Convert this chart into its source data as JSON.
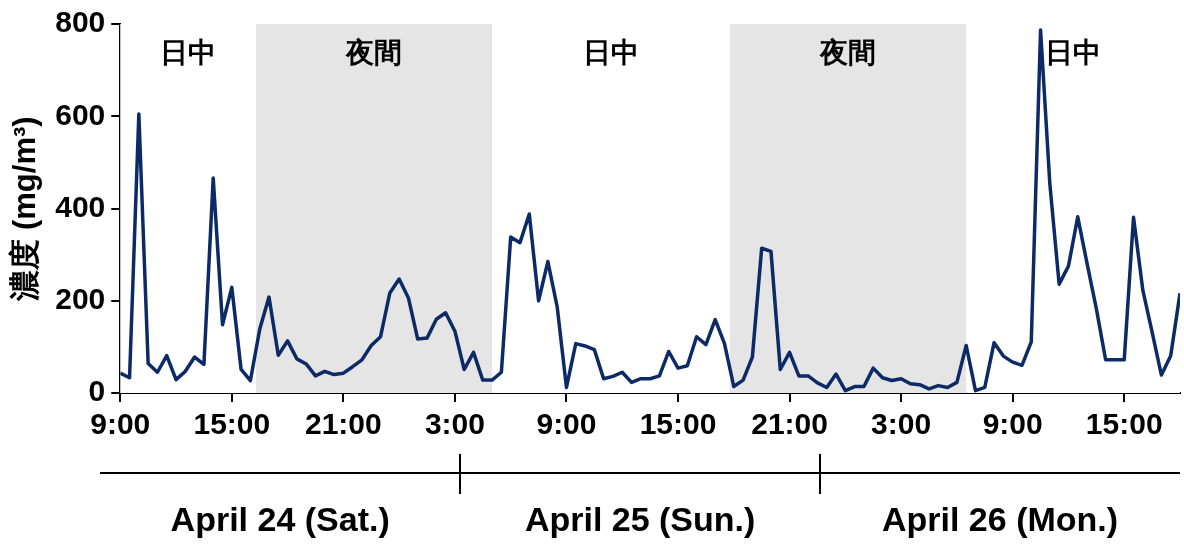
{
  "chart_data": {
    "type": "line",
    "ylabel": "濃度 (mg/m³)",
    "x": [
      "--04-24T09:00",
      "--04-24T09:30",
      "--04-24T10:00",
      "--04-24T10:30",
      "--04-24T11:00",
      "--04-24T11:30",
      "--04-24T12:00",
      "--04-24T12:30",
      "--04-24T13:00",
      "--04-24T13:30",
      "--04-24T14:00",
      "--04-24T14:30",
      "--04-24T15:00",
      "--04-24T15:30",
      "--04-24T16:00",
      "--04-24T16:30",
      "--04-24T17:00",
      "--04-24T17:30",
      "--04-24T18:00",
      "--04-24T18:30",
      "--04-24T19:00",
      "--04-24T19:30",
      "--04-24T20:00",
      "--04-24T20:30",
      "--04-24T21:00",
      "--04-24T21:30",
      "--04-24T22:00",
      "--04-24T22:30",
      "--04-24T23:00",
      "--04-24T23:30",
      "--04-25T00:00",
      "--04-25T00:30",
      "--04-25T01:00",
      "--04-25T01:30",
      "--04-25T02:00",
      "--04-25T02:30",
      "--04-25T03:00",
      "--04-25T03:30",
      "--04-25T04:00",
      "--04-25T04:30",
      "--04-25T05:00",
      "--04-25T05:30",
      "--04-25T06:00",
      "--04-25T06:30",
      "--04-25T07:00",
      "--04-25T07:30",
      "--04-25T08:00",
      "--04-25T08:30",
      "--04-25T09:00",
      "--04-25T09:30",
      "--04-25T10:00",
      "--04-25T10:30",
      "--04-25T11:00",
      "--04-25T11:30",
      "--04-25T12:00",
      "--04-25T12:30",
      "--04-25T13:00",
      "--04-25T13:30",
      "--04-25T14:00",
      "--04-25T14:30",
      "--04-25T15:00",
      "--04-25T15:30",
      "--04-25T16:00",
      "--04-25T16:30",
      "--04-25T17:00",
      "--04-25T17:30",
      "--04-25T18:00",
      "--04-25T18:30",
      "--04-25T19:00",
      "--04-25T19:30",
      "--04-25T20:00",
      "--04-25T20:30",
      "--04-25T21:00",
      "--04-25T21:30",
      "--04-25T22:00",
      "--04-25T22:30",
      "--04-25T23:00",
      "--04-25T23:30",
      "--04-26T00:00",
      "--04-26T00:30",
      "--04-26T01:00",
      "--04-26T01:30",
      "--04-26T02:00",
      "--04-26T02:30",
      "--04-26T03:00",
      "--04-26T03:30",
      "--04-26T04:00",
      "--04-26T04:30",
      "--04-26T05:00",
      "--04-26T05:30",
      "--04-26T06:00",
      "--04-26T06:30",
      "--04-26T07:00",
      "--04-26T07:30",
      "--04-26T08:00",
      "--04-26T08:30",
      "--04-26T09:00",
      "--04-26T09:30",
      "--04-26T10:00",
      "--04-26T10:30",
      "--04-26T11:00",
      "--04-26T11:30",
      "--04-26T12:00",
      "--04-26T12:30",
      "--04-26T13:00",
      "--04-26T13:30",
      "--04-26T14:00",
      "--04-26T14:30",
      "--04-26T15:00",
      "--04-26T15:30",
      "--04-26T16:00",
      "--04-26T16:30",
      "--04-26T17:00",
      "--04-26T17:30",
      "--04-26T18:00"
    ],
    "series": [
      {
        "color": "#0b2a66",
        "values": [
          43,
          33,
          605,
          64,
          45,
          81,
          29,
          47,
          78,
          62,
          466,
          148,
          229,
          51,
          27,
          138,
          208,
          82,
          113,
          74,
          63,
          37,
          47,
          40,
          43,
          57,
          72,
          103,
          122,
          217,
          247,
          206,
          117,
          119,
          160,
          174,
          134,
          51,
          88,
          28,
          28,
          45,
          338,
          326,
          388,
          200,
          285,
          187,
          12,
          107,
          102,
          94,
          31,
          36,
          45,
          23,
          31,
          31,
          37,
          90,
          54,
          59,
          122,
          105,
          159,
          107,
          14,
          28,
          78,
          314,
          307,
          51,
          88,
          37,
          37,
          22,
          12,
          41,
          5,
          14,
          14,
          54,
          33,
          27,
          31,
          20,
          18,
          9,
          16,
          12,
          23,
          103,
          5,
          12,
          109,
          80,
          67,
          60,
          111,
          787,
          453,
          236,
          275,
          382,
          281,
          183,
          72,
          72,
          72,
          381,
          223,
          132,
          39,
          81,
          216
        ]
      }
    ],
    "xlim": [
      "--04-24T09:00",
      "--04-26T18:00"
    ],
    "xticks": [
      {
        "value": "--04-24T09:00",
        "label": "9:00"
      },
      {
        "value": "--04-24T15:00",
        "label": "15:00"
      },
      {
        "value": "--04-24T21:00",
        "label": "21:00"
      },
      {
        "value": "--04-25T03:00",
        "label": "3:00"
      },
      {
        "value": "--04-25T09:00",
        "label": "9:00"
      },
      {
        "value": "--04-25T15:00",
        "label": "15:00"
      },
      {
        "value": "--04-25T21:00",
        "label": "21:00"
      },
      {
        "value": "--04-26T03:00",
        "label": "3:00"
      },
      {
        "value": "--04-26T09:00",
        "label": "9:00"
      },
      {
        "value": "--04-26T15:00",
        "label": "15:00"
      }
    ],
    "ylim": [
      0,
      800
    ],
    "yticks": [
      0,
      200,
      400,
      600,
      800
    ],
    "bands": [
      {
        "axis": "x",
        "from": "--04-24T09:00",
        "to": "--04-24T16:18",
        "label": "日中",
        "color": "#ffffff"
      },
      {
        "axis": "x",
        "from": "--04-24T16:18",
        "to": "--04-25T05:00",
        "label": "夜間",
        "color": "#e5e5e5"
      },
      {
        "axis": "x",
        "from": "--04-25T05:00",
        "to": "--04-25T17:48",
        "label": "日中",
        "color": "#ffffff"
      },
      {
        "axis": "x",
        "from": "--04-25T17:48",
        "to": "--04-26T06:30",
        "label": "夜間",
        "color": "#e5e5e5"
      },
      {
        "axis": "x",
        "from": "--04-26T06:30",
        "to": "--04-26T18:00",
        "label": "日中",
        "color": "#ffffff"
      }
    ],
    "annotations": [
      "April 24 (Sat.)",
      "April 25 (Sun.)",
      "April 26 (Mon.)"
    ],
    "grid": false,
    "legend": false,
    "marker": "none",
    "line_style": "solid"
  }
}
